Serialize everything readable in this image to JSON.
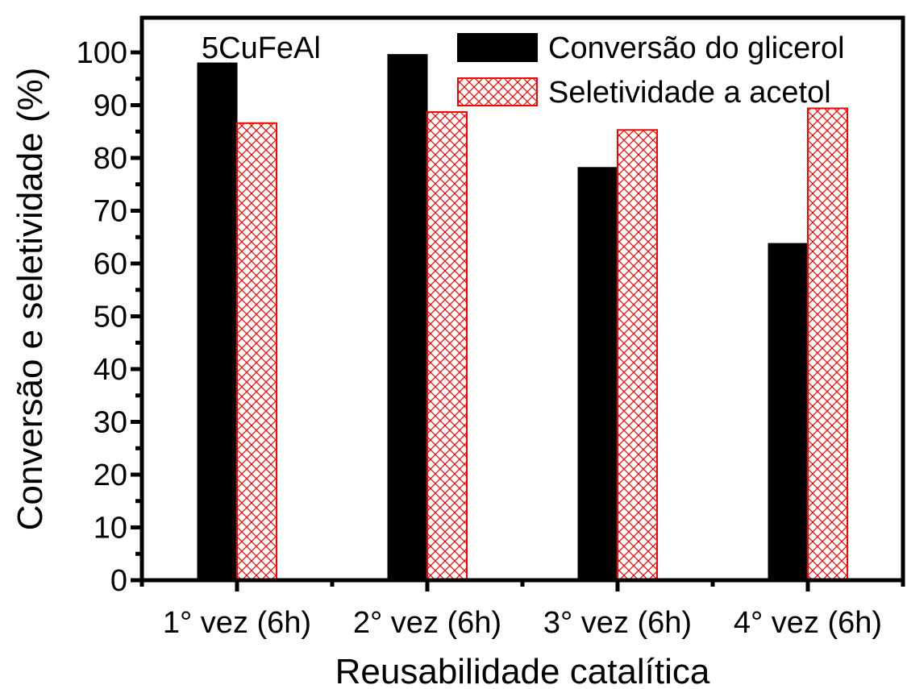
{
  "chart_data": {
    "type": "bar",
    "categories": [
      "1° vez (6h)",
      "2° vez (6h)",
      "3° vez (6h)",
      "4° vez (6h)"
    ],
    "series": [
      {
        "name": "Conversão do glicerol",
        "values": [
          98,
          99.6,
          78.2,
          63.8
        ],
        "color": "#000000",
        "fill": "solid"
      },
      {
        "name": "Seletividade a acetol",
        "values": [
          86.6,
          88.7,
          85.3,
          89.4
        ],
        "color": "#ff0000",
        "fill": "crosshatch"
      }
    ],
    "annotation": "5CuFeAl",
    "xlabel": "Reusabilidade catalítica",
    "ylabel": "Conversão e seletividade (%)",
    "ylim": [
      0,
      100
    ],
    "yticks": [
      0,
      10,
      20,
      30,
      40,
      50,
      60,
      70,
      80,
      90,
      100
    ],
    "legend_position": "top-right",
    "grid": false
  }
}
